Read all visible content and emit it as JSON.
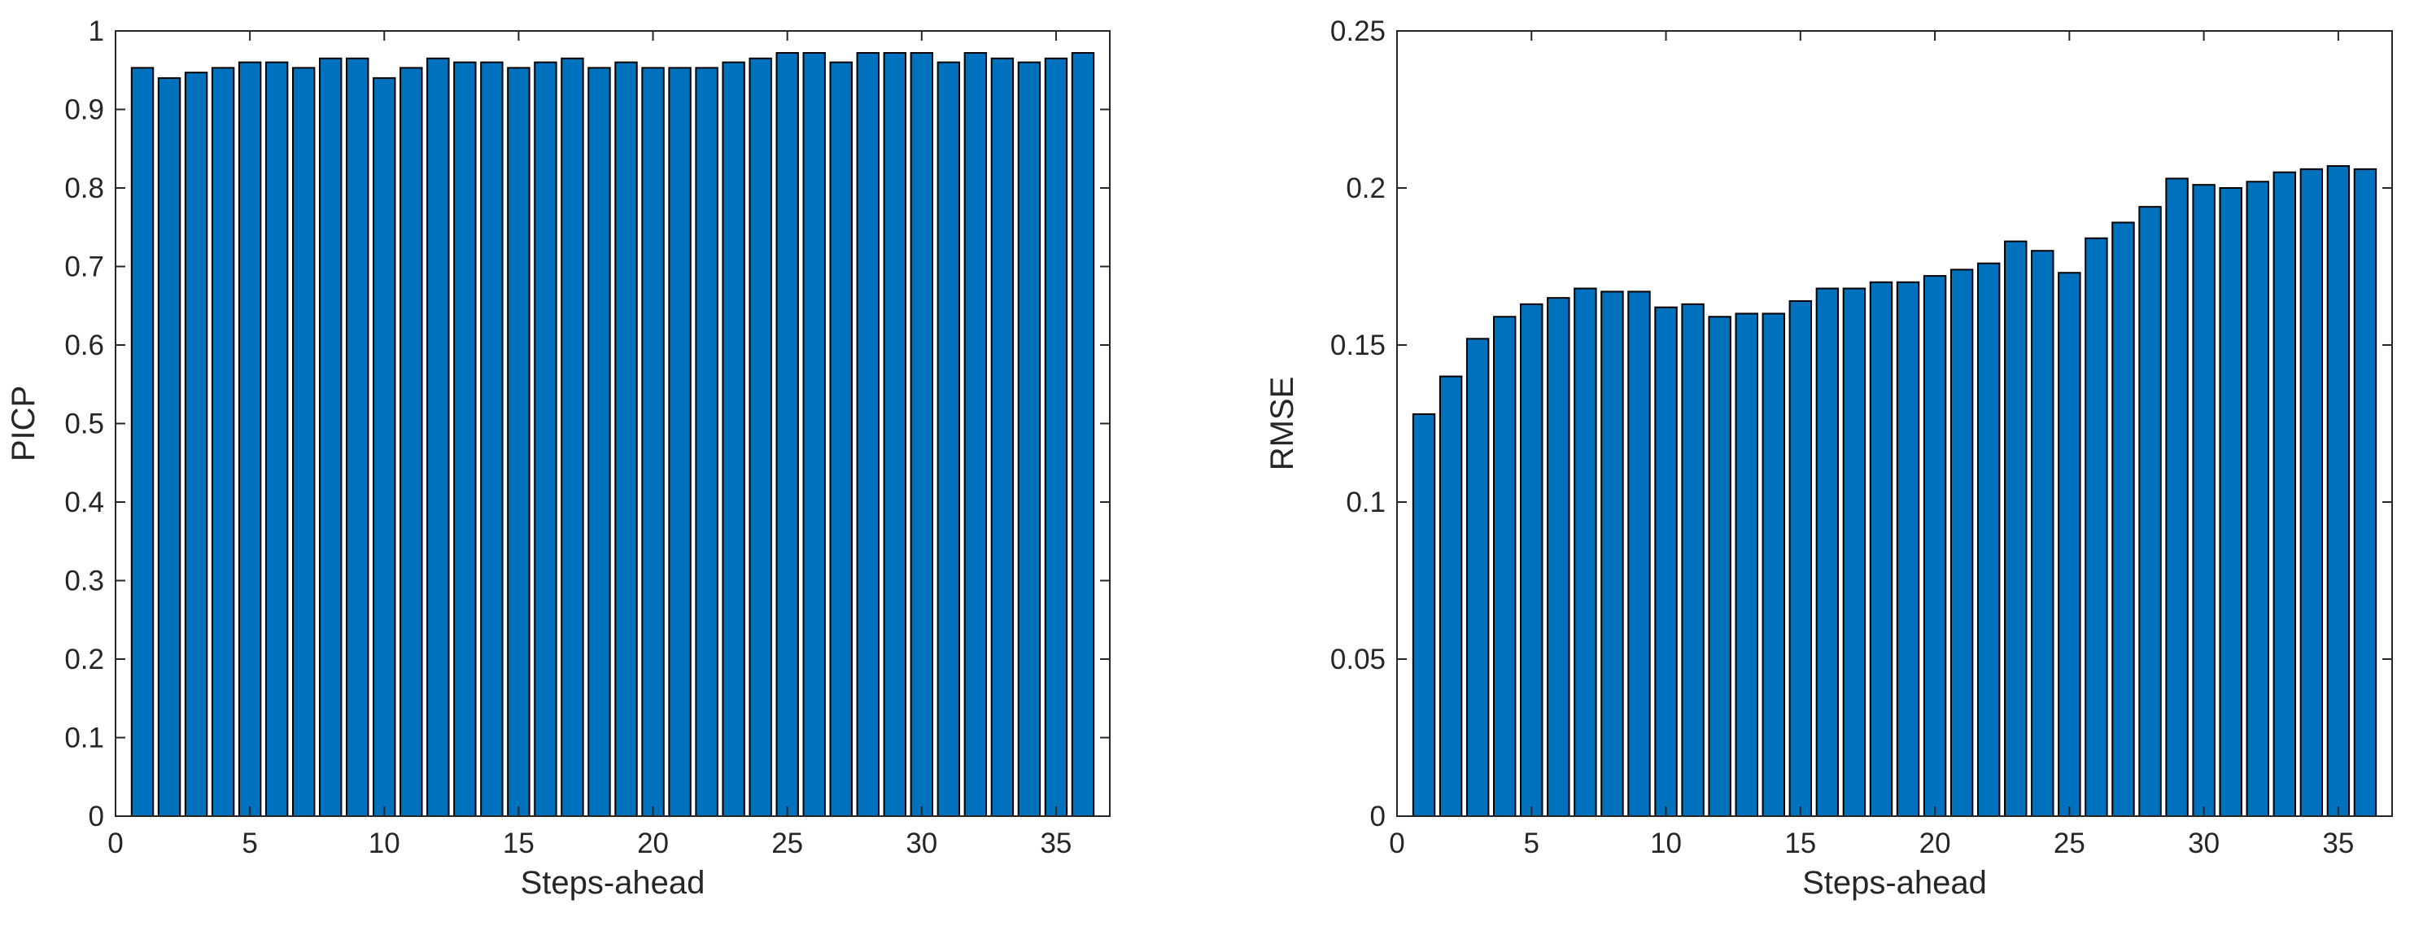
{
  "colors": {
    "bar": "#0072BD",
    "edge": "#000000",
    "axis": "#262626"
  },
  "chart_data": [
    {
      "type": "bar",
      "title": "",
      "xlabel": "Steps-ahead",
      "ylabel": "PICP",
      "xlim": [
        0,
        37
      ],
      "ylim": [
        0,
        1
      ],
      "xticks": [
        0,
        5,
        10,
        15,
        20,
        25,
        30,
        35
      ],
      "yticks": [
        0,
        0.1,
        0.2,
        0.3,
        0.4,
        0.5,
        0.6,
        0.7,
        0.8,
        0.9,
        1
      ],
      "ytick_labels": [
        "0",
        "0.1",
        "0.2",
        "0.3",
        "0.4",
        "0.5",
        "0.6",
        "0.7",
        "0.8",
        "0.9",
        "1"
      ],
      "grid": false,
      "x": [
        1,
        2,
        3,
        4,
        5,
        6,
        7,
        8,
        9,
        10,
        11,
        12,
        13,
        14,
        15,
        16,
        17,
        18,
        19,
        20,
        21,
        22,
        23,
        24,
        25,
        26,
        27,
        28,
        29,
        30,
        31,
        32,
        33,
        34,
        35,
        36
      ],
      "values": [
        0.953,
        0.94,
        0.947,
        0.953,
        0.96,
        0.96,
        0.953,
        0.965,
        0.965,
        0.94,
        0.953,
        0.965,
        0.96,
        0.96,
        0.953,
        0.96,
        0.965,
        0.953,
        0.96,
        0.953,
        0.953,
        0.953,
        0.96,
        0.965,
        0.972,
        0.972,
        0.96,
        0.972,
        0.972,
        0.972,
        0.96,
        0.972,
        0.965,
        0.96,
        0.965,
        0.972
      ]
    },
    {
      "type": "bar",
      "title": "",
      "xlabel": "Steps-ahead",
      "ylabel": "RMSE",
      "xlim": [
        0,
        37
      ],
      "ylim": [
        0,
        0.25
      ],
      "xticks": [
        0,
        5,
        10,
        15,
        20,
        25,
        30,
        35
      ],
      "yticks": [
        0,
        0.05,
        0.1,
        0.15,
        0.2,
        0.25
      ],
      "ytick_labels": [
        "0",
        "0.05",
        "0.1",
        "0.15",
        "0.2",
        "0.25"
      ],
      "grid": false,
      "x": [
        1,
        2,
        3,
        4,
        5,
        6,
        7,
        8,
        9,
        10,
        11,
        12,
        13,
        14,
        15,
        16,
        17,
        18,
        19,
        20,
        21,
        22,
        23,
        24,
        25,
        26,
        27,
        28,
        29,
        30,
        31,
        32,
        33,
        34,
        35,
        36
      ],
      "values": [
        0.128,
        0.14,
        0.152,
        0.159,
        0.163,
        0.165,
        0.168,
        0.167,
        0.167,
        0.162,
        0.163,
        0.159,
        0.16,
        0.16,
        0.164,
        0.168,
        0.168,
        0.17,
        0.17,
        0.172,
        0.174,
        0.176,
        0.183,
        0.18,
        0.173,
        0.184,
        0.189,
        0.194,
        0.203,
        0.201,
        0.2,
        0.202,
        0.205,
        0.206,
        0.207,
        0.206
      ]
    }
  ]
}
